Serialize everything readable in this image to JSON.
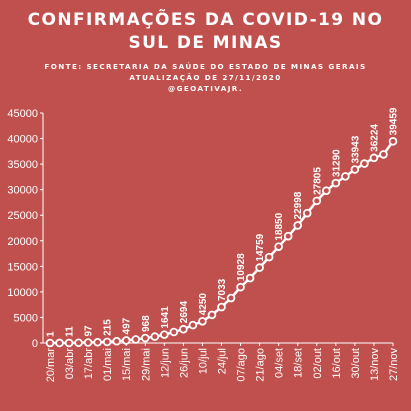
{
  "chart_data": {
    "type": "line",
    "title_lines": [
      "CONFIRMAÇÕES DA COVID-19 NO",
      "SUL DE MINAS"
    ],
    "subtitle_lines": [
      "FONTE: SECRETARIA DA SAÚDE DO ESTADO DE MINAS GERAIS",
      "ATUALIZAÇÃO DE 27/11/2020",
      "@GEOATIVAJR."
    ],
    "xlabel": "",
    "ylabel": "",
    "ylim": [
      0,
      45000
    ],
    "yticks": [
      0,
      5000,
      10000,
      15000,
      20000,
      25000,
      30000,
      35000,
      40000,
      45000
    ],
    "x_tick_labels": [
      "20/mar",
      "03/abr",
      "17/abr",
      "01/mai",
      "15/mai",
      "29/mai",
      "12/jun",
      "26/jun",
      "10/jul",
      "24/jul",
      "07/ago",
      "21/ago",
      "04/set",
      "18/set",
      "02/out",
      "16/out",
      "30/out",
      "13/nov",
      "27/nov"
    ],
    "grid": false,
    "colors": {
      "background": "#c0504d",
      "line": "#ffffff",
      "marker_fill": "#c0504d",
      "text": "#ffffff"
    },
    "series": [
      {
        "values": [
          1,
          6,
          11,
          45,
          97,
          150,
          215,
          350,
          497,
          700,
          968,
          1250,
          1641,
          2150,
          2694,
          3500,
          4250,
          5500,
          7033,
          8800,
          10928,
          12700,
          14759,
          16800,
          18850,
          20900,
          22998,
          25400,
          27805,
          29800,
          31290,
          32600,
          33943,
          35100,
          36224,
          36900,
          39459
        ],
        "data_labels": {
          "0": "1",
          "2": "11",
          "4": "97",
          "6": "215",
          "8": "497",
          "10": "968",
          "12": "1641",
          "14": "2694",
          "16": "4250",
          "18": "7033",
          "20": "10928",
          "22": "14759",
          "24": "18850",
          "26": "22998",
          "28": "27805",
          "30": "31290",
          "32": "33943",
          "34": "36224",
          "36": "39459"
        }
      }
    ]
  }
}
